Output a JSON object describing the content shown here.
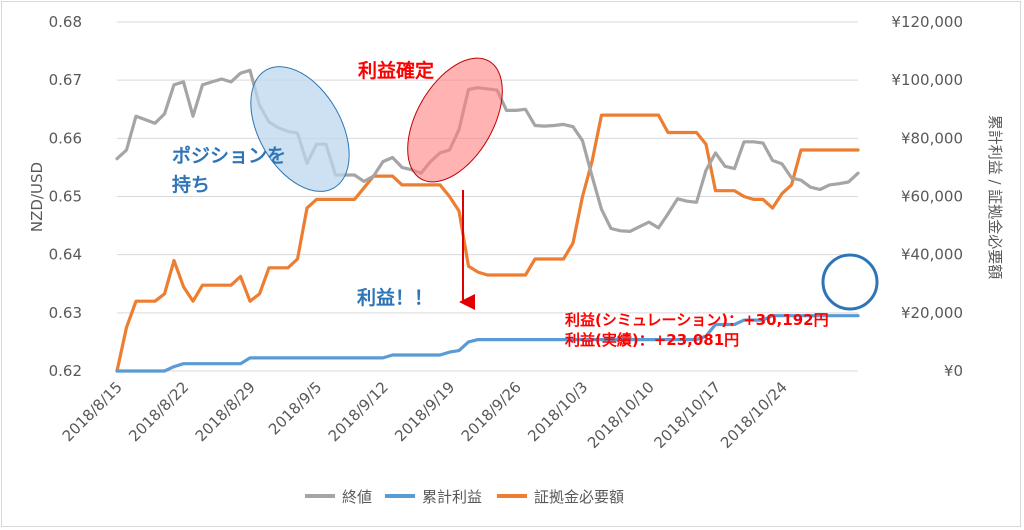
{
  "chart_data": {
    "type": "line",
    "x_tick_labels": [
      "2018/8/15",
      "2018/8/22",
      "2018/8/29",
      "2018/9/5",
      "2018/9/12",
      "2018/9/19",
      "2018/9/26",
      "2018/10/3",
      "2018/10/10",
      "2018/10/17",
      "2018/10/24"
    ],
    "left_axis": {
      "label": "NZD/USD",
      "range": [
        0.62,
        0.68
      ],
      "ticks": [
        "0.62",
        "0.63",
        "0.64",
        "0.65",
        "0.66",
        "0.67",
        "0.68"
      ]
    },
    "right_axis": {
      "label": "累計利益 / 証拠金必要額",
      "range": [
        0,
        120000
      ],
      "ticks": [
        "¥0",
        "¥20,000",
        "¥40,000",
        "¥60,000",
        "¥80,000",
        "¥100,000",
        "¥120,000"
      ]
    },
    "grid": true,
    "legend_position": "bottom",
    "series": [
      {
        "name": "終値",
        "axis": "left",
        "color": "#a5a5a5",
        "values": [
          0.6565,
          0.658,
          0.6638,
          0.6632,
          0.6626,
          0.6642,
          0.6692,
          0.6697,
          0.6638,
          0.6692,
          0.6697,
          0.6702,
          0.6697,
          0.6712,
          0.6717,
          0.6657,
          0.6628,
          0.6618,
          0.6612,
          0.6609,
          0.6557,
          0.659,
          0.659,
          0.6537,
          0.6537,
          0.6537,
          0.6526,
          0.6535,
          0.656,
          0.6567,
          0.655,
          0.6546,
          0.654,
          0.656,
          0.6575,
          0.658,
          0.6615,
          0.6684,
          0.6687,
          0.6685,
          0.6683,
          0.6648,
          0.6648,
          0.665,
          0.6622,
          0.6621,
          0.6622,
          0.6624,
          0.662,
          0.6596,
          0.6535,
          0.6478,
          0.6445,
          0.6441,
          0.644,
          0.6448,
          0.6456,
          0.6446,
          0.647,
          0.6496,
          0.6492,
          0.649,
          0.6545,
          0.6575,
          0.6552,
          0.6548,
          0.6594,
          0.6594,
          0.6592,
          0.6562,
          0.6556,
          0.6532,
          0.6528,
          0.6516,
          0.6512,
          0.652,
          0.6522,
          0.6525,
          0.654
        ]
      },
      {
        "name": "累計利益",
        "axis": "right",
        "color": "#5b9bd5",
        "values": [
          0,
          0,
          0,
          0,
          0,
          0,
          1500,
          2500,
          2500,
          2500,
          2500,
          2500,
          2500,
          2500,
          4500,
          4500,
          4500,
          4500,
          4500,
          4500,
          4500,
          4500,
          4500,
          4500,
          4500,
          4500,
          4500,
          4500,
          4500,
          5500,
          5500,
          5500,
          5500,
          5500,
          5500,
          6500,
          7000,
          10000,
          10800,
          10800,
          10800,
          10800,
          10800,
          10800,
          10800,
          10800,
          10800,
          10800,
          10800,
          10800,
          10800,
          10800,
          10800,
          10800,
          10800,
          10800,
          10800,
          10800,
          10800,
          10800,
          10800,
          10800,
          12000,
          16000,
          16000,
          16000,
          17500,
          17500,
          17500,
          19000,
          19000,
          19000,
          19000,
          19000,
          19000,
          19000,
          19000,
          19000,
          19000
        ]
      },
      {
        "name": "証拠金必要額",
        "axis": "right",
        "color": "#ed7d31",
        "values": [
          0,
          15000,
          24000,
          24000,
          24000,
          26500,
          38000,
          29000,
          24000,
          29500,
          29500,
          29500,
          29500,
          32500,
          24000,
          26500,
          35500,
          35500,
          35500,
          38500,
          56000,
          59000,
          59000,
          59000,
          59000,
          59000,
          63000,
          67000,
          67000,
          67000,
          64000,
          64000,
          64000,
          64000,
          64000,
          60000,
          55000,
          36000,
          34000,
          33000,
          33000,
          33000,
          33000,
          33000,
          38500,
          38500,
          38500,
          38500,
          44000,
          60000,
          72000,
          88000,
          88000,
          88000,
          88000,
          88000,
          88000,
          88000,
          82000,
          82000,
          82000,
          82000,
          78000,
          62000,
          62000,
          62000,
          60000,
          59000,
          59000,
          56000,
          61000,
          64000,
          76000,
          76000,
          76000,
          76000,
          76000,
          76000,
          76000
        ]
      }
    ],
    "annotations": {
      "position": "ポジションを\n持ち",
      "take_profit": "利益確定",
      "profit": "利益！！",
      "simulation": "利益(シミュレーション)：+30,192円",
      "actual": "利益(実績)：+23,081円"
    }
  }
}
